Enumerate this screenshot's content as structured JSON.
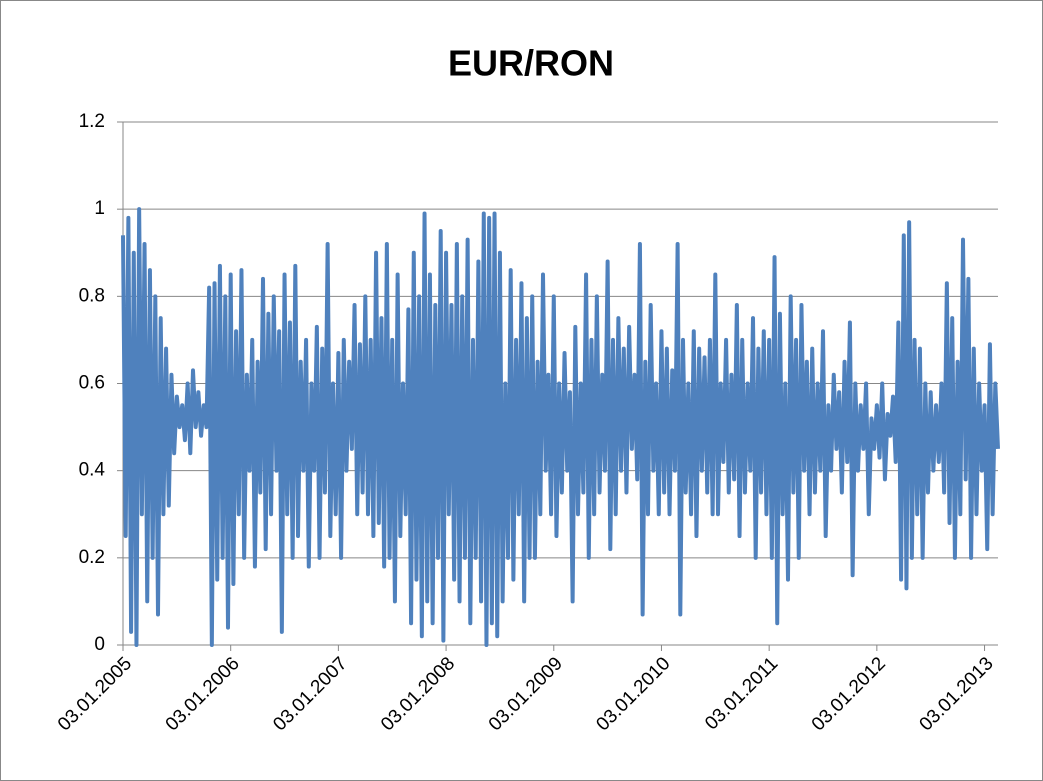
{
  "chart_data": {
    "type": "line",
    "title": "EUR/RON",
    "categories": [
      "03.01.2005",
      null,
      null,
      null,
      null,
      null,
      null,
      null,
      null,
      null,
      null,
      null,
      null,
      null,
      null,
      null,
      null,
      null,
      null,
      null,
      null,
      null,
      null,
      null,
      null,
      null,
      null,
      null,
      null,
      null,
      null,
      null,
      null,
      null,
      null,
      null,
      null,
      null,
      null,
      null,
      "03.01.2006",
      null,
      null,
      null,
      null,
      null,
      null,
      null,
      null,
      null,
      null,
      null,
      null,
      null,
      null,
      null,
      null,
      null,
      null,
      null,
      null,
      null,
      null,
      null,
      null,
      null,
      null,
      null,
      null,
      null,
      null,
      null,
      null,
      null,
      null,
      null,
      null,
      null,
      null,
      null,
      "03.01.2007",
      null,
      null,
      null,
      null,
      null,
      null,
      null,
      null,
      null,
      null,
      null,
      null,
      null,
      null,
      null,
      null,
      null,
      null,
      null,
      null,
      null,
      null,
      null,
      null,
      null,
      null,
      null,
      null,
      null,
      null,
      null,
      null,
      null,
      null,
      null,
      null,
      null,
      null,
      null,
      "03.01.2008",
      null,
      null,
      null,
      null,
      null,
      null,
      null,
      null,
      null,
      null,
      null,
      null,
      null,
      null,
      null,
      null,
      null,
      null,
      null,
      null,
      null,
      null,
      null,
      null,
      null,
      null,
      null,
      null,
      null,
      null,
      null,
      null,
      null,
      null,
      null,
      null,
      null,
      null,
      null,
      "03.01.2009",
      null,
      null,
      null,
      null,
      null,
      null,
      null,
      null,
      null,
      null,
      null,
      null,
      null,
      null,
      null,
      null,
      null,
      null,
      null,
      null,
      null,
      null,
      null,
      null,
      null,
      null,
      null,
      null,
      null,
      null,
      null,
      null,
      null,
      null,
      null,
      null,
      null,
      null,
      null,
      "03.01.2010",
      null,
      null,
      null,
      null,
      null,
      null,
      null,
      null,
      null,
      null,
      null,
      null,
      null,
      null,
      null,
      null,
      null,
      null,
      null,
      null,
      null,
      null,
      null,
      null,
      null,
      null,
      null,
      null,
      null,
      null,
      null,
      null,
      null,
      null,
      null,
      null,
      null,
      null,
      null,
      "03.01.2011",
      null,
      null,
      null,
      null,
      null,
      null,
      null,
      null,
      null,
      null,
      null,
      null,
      null,
      null,
      null,
      null,
      null,
      null,
      null,
      null,
      null,
      null,
      null,
      null,
      null,
      null,
      null,
      null,
      null,
      null,
      null,
      null,
      null,
      null,
      null,
      null,
      null,
      null,
      null,
      "03.01.2012",
      null,
      null,
      null,
      null,
      null,
      null,
      null,
      null,
      null,
      null,
      null,
      null,
      null,
      null,
      null,
      null,
      null,
      null,
      null,
      null,
      null,
      null,
      null,
      null,
      null,
      null,
      null,
      null,
      null,
      null,
      null,
      null,
      null,
      null,
      null,
      null,
      null,
      null,
      null,
      "03.01.2013",
      null,
      null,
      null,
      null,
      null
    ],
    "values": [
      0.94,
      0.25,
      0.98,
      0.03,
      0.9,
      0.0,
      1.0,
      0.3,
      0.92,
      0.1,
      0.86,
      0.2,
      0.8,
      0.07,
      0.75,
      0.3,
      0.68,
      0.32,
      0.62,
      0.44,
      0.57,
      0.5,
      0.55,
      0.47,
      0.6,
      0.44,
      0.63,
      0.5,
      0.58,
      0.48,
      0.55,
      0.5,
      0.82,
      0.0,
      0.83,
      0.15,
      0.87,
      0.2,
      0.8,
      0.04,
      0.85,
      0.14,
      0.72,
      0.3,
      0.86,
      0.2,
      0.62,
      0.4,
      0.7,
      0.18,
      0.65,
      0.35,
      0.84,
      0.22,
      0.76,
      0.3,
      0.8,
      0.4,
      0.72,
      0.03,
      0.85,
      0.3,
      0.74,
      0.2,
      0.87,
      0.25,
      0.65,
      0.4,
      0.7,
      0.18,
      0.6,
      0.4,
      0.73,
      0.2,
      0.68,
      0.35,
      0.92,
      0.25,
      0.6,
      0.3,
      0.67,
      0.2,
      0.7,
      0.4,
      0.65,
      0.45,
      0.78,
      0.3,
      0.69,
      0.35,
      0.8,
      0.3,
      0.7,
      0.25,
      0.9,
      0.28,
      0.75,
      0.18,
      0.92,
      0.2,
      0.7,
      0.1,
      0.85,
      0.25,
      0.6,
      0.3,
      0.77,
      0.05,
      0.9,
      0.15,
      0.8,
      0.02,
      0.99,
      0.1,
      0.85,
      0.05,
      0.78,
      0.2,
      0.95,
      0.01,
      0.9,
      0.3,
      0.78,
      0.15,
      0.92,
      0.1,
      0.8,
      0.2,
      0.93,
      0.05,
      0.7,
      0.2,
      0.88,
      0.1,
      0.99,
      0.0,
      0.98,
      0.05,
      0.99,
      0.02,
      0.9,
      0.1,
      0.6,
      0.2,
      0.86,
      0.15,
      0.7,
      0.3,
      0.83,
      0.1,
      0.75,
      0.2,
      0.8,
      0.2,
      0.65,
      0.3,
      0.85,
      0.4,
      0.62,
      0.3,
      0.8,
      0.25,
      0.6,
      0.35,
      0.67,
      0.4,
      0.58,
      0.1,
      0.73,
      0.3,
      0.6,
      0.35,
      0.85,
      0.2,
      0.7,
      0.3,
      0.8,
      0.35,
      0.62,
      0.4,
      0.88,
      0.22,
      0.7,
      0.3,
      0.75,
      0.4,
      0.68,
      0.35,
      0.73,
      0.45,
      0.62,
      0.38,
      0.92,
      0.07,
      0.65,
      0.3,
      0.78,
      0.4,
      0.6,
      0.3,
      0.72,
      0.35,
      0.68,
      0.3,
      0.63,
      0.4,
      0.92,
      0.07,
      0.7,
      0.35,
      0.6,
      0.3,
      0.72,
      0.25,
      0.68,
      0.4,
      0.66,
      0.35,
      0.7,
      0.3,
      0.85,
      0.3,
      0.6,
      0.42,
      0.7,
      0.35,
      0.62,
      0.38,
      0.78,
      0.25,
      0.7,
      0.35,
      0.6,
      0.4,
      0.75,
      0.2,
      0.68,
      0.35,
      0.72,
      0.3,
      0.7,
      0.2,
      0.89,
      0.05,
      0.76,
      0.3,
      0.6,
      0.15,
      0.8,
      0.35,
      0.7,
      0.2,
      0.78,
      0.4,
      0.65,
      0.3,
      0.68,
      0.35,
      0.6,
      0.4,
      0.72,
      0.25,
      0.55,
      0.4,
      0.62,
      0.45,
      0.58,
      0.35,
      0.65,
      0.42,
      0.74,
      0.16,
      0.6,
      0.4,
      0.55,
      0.45,
      0.6,
      0.3,
      0.52,
      0.45,
      0.55,
      0.43,
      0.6,
      0.38,
      0.53,
      0.48,
      0.57,
      0.42,
      0.74,
      0.15,
      0.94,
      0.13,
      0.97,
      0.2,
      0.7,
      0.3,
      0.68,
      0.2,
      0.6,
      0.35,
      0.58,
      0.4,
      0.55,
      0.42,
      0.6,
      0.35,
      0.83,
      0.28,
      0.75,
      0.2,
      0.65,
      0.3,
      0.93,
      0.38,
      0.84,
      0.2,
      0.68,
      0.3,
      0.6,
      0.4,
      0.55,
      0.22,
      0.69,
      0.3,
      0.6,
      0.45
    ],
    "color": "#4f81bd",
    "ylim": [
      0,
      1.2
    ],
    "yticks": [
      0,
      0.2,
      0.4,
      0.6,
      0.8,
      1,
      1.2
    ],
    "grid": true
  }
}
